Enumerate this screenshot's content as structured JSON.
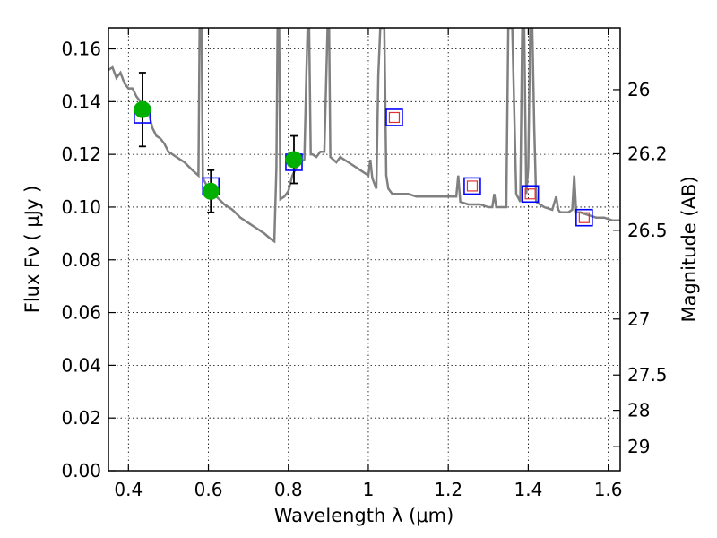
{
  "chart_data": {
    "type": "scatter",
    "xlabel": "Wavelength  λ (μm)",
    "ylabel": "Flux  Fν  ( μJy )",
    "y2label": "Magnitude (AB)",
    "xlim": [
      0.35,
      1.63
    ],
    "ylim": [
      0.0,
      0.168
    ],
    "grid": true,
    "x_ticks": [
      {
        "v": 0.4,
        "label": "0.4"
      },
      {
        "v": 0.6,
        "label": "0.6"
      },
      {
        "v": 0.8,
        "label": "0.8"
      },
      {
        "v": 1.0,
        "label": "1"
      },
      {
        "v": 1.2,
        "label": "1.2"
      },
      {
        "v": 1.4,
        "label": "1.4"
      },
      {
        "v": 1.6,
        "label": "1.6"
      }
    ],
    "y_ticks": [
      {
        "v": 0.0,
        "label": "0.00"
      },
      {
        "v": 0.02,
        "label": "0.02"
      },
      {
        "v": 0.04,
        "label": "0.04"
      },
      {
        "v": 0.06,
        "label": "0.06"
      },
      {
        "v": 0.08,
        "label": "0.08"
      },
      {
        "v": 0.1,
        "label": "0.10"
      },
      {
        "v": 0.12,
        "label": "0.12"
      },
      {
        "v": 0.14,
        "label": "0.14"
      },
      {
        "v": 0.16,
        "label": "0.16"
      }
    ],
    "y2_ticks": [
      {
        "mag": 26,
        "label": "26"
      },
      {
        "mag": 26.2,
        "label": "26.2"
      },
      {
        "mag": 26.5,
        "label": "26.5"
      },
      {
        "mag": 27,
        "label": "27"
      },
      {
        "mag": 27.5,
        "label": "27.5"
      },
      {
        "mag": 28,
        "label": "28"
      },
      {
        "mag": 29,
        "label": "29"
      }
    ],
    "model_spectrum": {
      "color": "#808080",
      "points": [
        [
          0.35,
          0.152
        ],
        [
          0.36,
          0.153
        ],
        [
          0.37,
          0.149
        ],
        [
          0.38,
          0.151
        ],
        [
          0.39,
          0.147
        ],
        [
          0.4,
          0.145
        ],
        [
          0.41,
          0.145
        ],
        [
          0.42,
          0.142
        ],
        [
          0.43,
          0.14
        ],
        [
          0.45,
          0.136
        ],
        [
          0.46,
          0.13
        ],
        [
          0.47,
          0.127
        ],
        [
          0.48,
          0.126
        ],
        [
          0.49,
          0.124
        ],
        [
          0.5,
          0.121
        ],
        [
          0.52,
          0.119
        ],
        [
          0.54,
          0.117
        ],
        [
          0.56,
          0.114
        ],
        [
          0.575,
          0.112
        ],
        [
          0.578,
          0.168
        ],
        [
          0.583,
          0.168
        ],
        [
          0.586,
          0.111
        ],
        [
          0.6,
          0.107
        ],
        [
          0.62,
          0.104
        ],
        [
          0.64,
          0.101
        ],
        [
          0.66,
          0.099
        ],
        [
          0.68,
          0.096
        ],
        [
          0.7,
          0.094
        ],
        [
          0.72,
          0.092
        ],
        [
          0.74,
          0.09
        ],
        [
          0.755,
          0.088
        ],
        [
          0.765,
          0.087
        ],
        [
          0.77,
          0.115
        ],
        [
          0.773,
          0.168
        ],
        [
          0.777,
          0.168
        ],
        [
          0.78,
          0.103
        ],
        [
          0.79,
          0.104
        ],
        [
          0.8,
          0.106
        ],
        [
          0.81,
          0.112
        ],
        [
          0.82,
          0.115
        ],
        [
          0.83,
          0.117
        ],
        [
          0.84,
          0.118
        ],
        [
          0.845,
          0.15
        ],
        [
          0.848,
          0.168
        ],
        [
          0.852,
          0.168
        ],
        [
          0.856,
          0.12
        ],
        [
          0.86,
          0.12
        ],
        [
          0.87,
          0.119
        ],
        [
          0.88,
          0.121
        ],
        [
          0.89,
          0.121
        ],
        [
          0.895,
          0.15
        ],
        [
          0.898,
          0.168
        ],
        [
          0.902,
          0.168
        ],
        [
          0.905,
          0.119
        ],
        [
          0.92,
          0.117
        ],
        [
          0.93,
          0.119
        ],
        [
          0.95,
          0.117
        ],
        [
          0.97,
          0.115
        ],
        [
          0.99,
          0.113
        ],
        [
          1.0,
          0.112
        ],
        [
          1.005,
          0.118
        ],
        [
          1.01,
          0.111
        ],
        [
          1.02,
          0.107
        ],
        [
          1.025,
          0.15
        ],
        [
          1.03,
          0.168
        ],
        [
          1.04,
          0.168
        ],
        [
          1.045,
          0.112
        ],
        [
          1.05,
          0.107
        ],
        [
          1.06,
          0.105
        ],
        [
          1.08,
          0.105
        ],
        [
          1.1,
          0.105
        ],
        [
          1.12,
          0.104
        ],
        [
          1.15,
          0.104
        ],
        [
          1.18,
          0.104
        ],
        [
          1.2,
          0.104
        ],
        [
          1.22,
          0.104
        ],
        [
          1.225,
          0.112
        ],
        [
          1.23,
          0.102
        ],
        [
          1.25,
          0.101
        ],
        [
          1.28,
          0.101
        ],
        [
          1.3,
          0.1
        ],
        [
          1.31,
          0.1
        ],
        [
          1.315,
          0.105
        ],
        [
          1.32,
          0.1
        ],
        [
          1.33,
          0.1
        ],
        [
          1.345,
          0.1
        ],
        [
          1.35,
          0.168
        ],
        [
          1.36,
          0.168
        ],
        [
          1.37,
          0.105
        ],
        [
          1.38,
          0.102
        ],
        [
          1.385,
          0.168
        ],
        [
          1.39,
          0.168
        ],
        [
          1.395,
          0.105
        ],
        [
          1.4,
          0.115
        ],
        [
          1.405,
          0.168
        ],
        [
          1.41,
          0.168
        ],
        [
          1.415,
          0.13
        ],
        [
          1.42,
          0.102
        ],
        [
          1.44,
          0.1
        ],
        [
          1.46,
          0.099
        ],
        [
          1.47,
          0.104
        ],
        [
          1.475,
          0.099
        ],
        [
          1.48,
          0.098
        ],
        [
          1.49,
          0.098
        ],
        [
          1.5,
          0.098
        ],
        [
          1.51,
          0.099
        ],
        [
          1.515,
          0.112
        ],
        [
          1.52,
          0.098
        ],
        [
          1.53,
          0.098
        ],
        [
          1.55,
          0.097
        ],
        [
          1.57,
          0.096
        ],
        [
          1.59,
          0.096
        ],
        [
          1.61,
          0.095
        ],
        [
          1.63,
          0.095
        ]
      ]
    },
    "model_photometry": {
      "marker": "open-square",
      "edge_color": "#0000ff",
      "points": [
        {
          "x": 0.435,
          "y": 0.135
        },
        {
          "x": 0.606,
          "y": 0.108
        },
        {
          "x": 0.814,
          "y": 0.117
        },
        {
          "x": 1.065,
          "y": 0.134
        },
        {
          "x": 1.26,
          "y": 0.108
        },
        {
          "x": 1.405,
          "y": 0.105
        },
        {
          "x": 1.54,
          "y": 0.096
        }
      ]
    },
    "model_photometry_inner": {
      "marker": "open-square",
      "edge_color": "#e03030",
      "points": [
        {
          "x": 1.065,
          "y": 0.134
        },
        {
          "x": 1.26,
          "y": 0.108
        },
        {
          "x": 1.405,
          "y": 0.105
        },
        {
          "x": 1.54,
          "y": 0.096
        }
      ]
    },
    "observed": {
      "marker": "filled-circle",
      "color": "#00b000",
      "points": [
        {
          "x": 0.435,
          "y": 0.137,
          "err": 0.014
        },
        {
          "x": 0.606,
          "y": 0.106,
          "err": 0.008
        },
        {
          "x": 0.814,
          "y": 0.118,
          "err": 0.009
        }
      ]
    }
  }
}
